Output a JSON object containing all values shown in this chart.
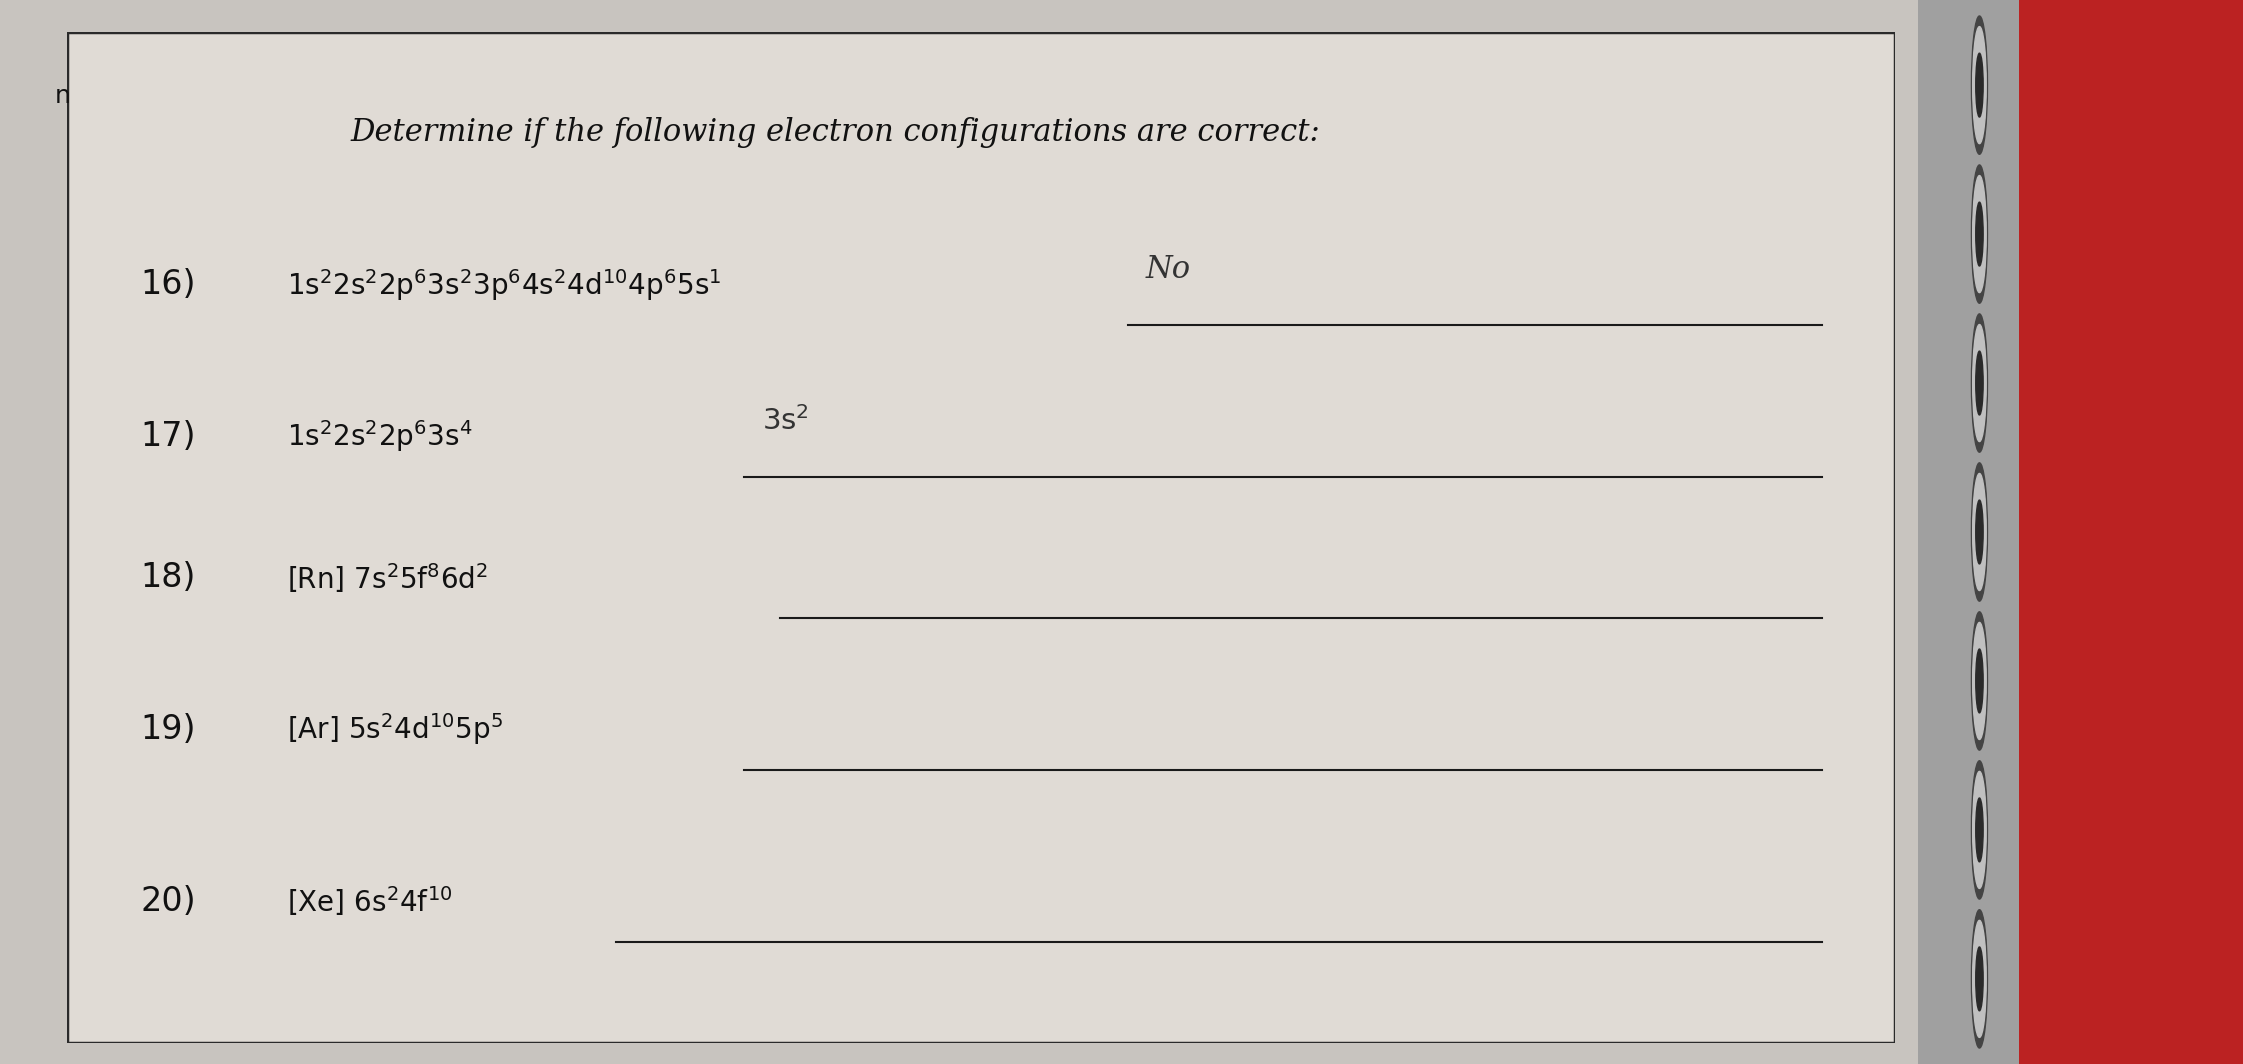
{
  "title": "Determine if the following electron configurations are correct:",
  "bg_color": "#c8c4bf",
  "paper_color": "#e0dbd5",
  "border_color": "#2a2a2a",
  "line_color": "#1a1a1a",
  "text_color": "#111111",
  "answer_color": "#333333",
  "red_color": "#bb2222",
  "silver_color": "#a0a0a0",
  "figsize": [
    22.43,
    10.64
  ],
  "dpi": 100,
  "items": [
    {
      "number": "16)",
      "config_parts": [
        [
          "1s",
          "2",
          "2s",
          "2",
          "2p",
          "6",
          "3s",
          "2",
          "3p",
          "6",
          "4s",
          "2",
          "4d",
          "10",
          "4p",
          "6",
          "5s",
          "1"
        ]
      ],
      "answer": "No",
      "has_answer": true
    },
    {
      "number": "17)",
      "config_parts": [
        [
          "1s",
          "2",
          "2s",
          "2",
          "2p",
          "6",
          "3s",
          "4"
        ]
      ],
      "answer": "3s²",
      "has_answer": true
    },
    {
      "number": "18)",
      "config_parts": [
        [
          "[Rn] 7s",
          "2",
          "5f",
          "8",
          "6d",
          "2"
        ]
      ],
      "answer": "",
      "has_answer": false
    },
    {
      "number": "19)",
      "config_parts": [
        [
          "[Ar] 5s",
          "2",
          "4d",
          "10",
          "5p",
          "5"
        ]
      ],
      "answer": "",
      "has_answer": false
    },
    {
      "number": "20)",
      "config_parts": [
        [
          "[Xe] 6s",
          "2",
          "4f",
          "10"
        ]
      ],
      "answer": "",
      "has_answer": false
    }
  ]
}
